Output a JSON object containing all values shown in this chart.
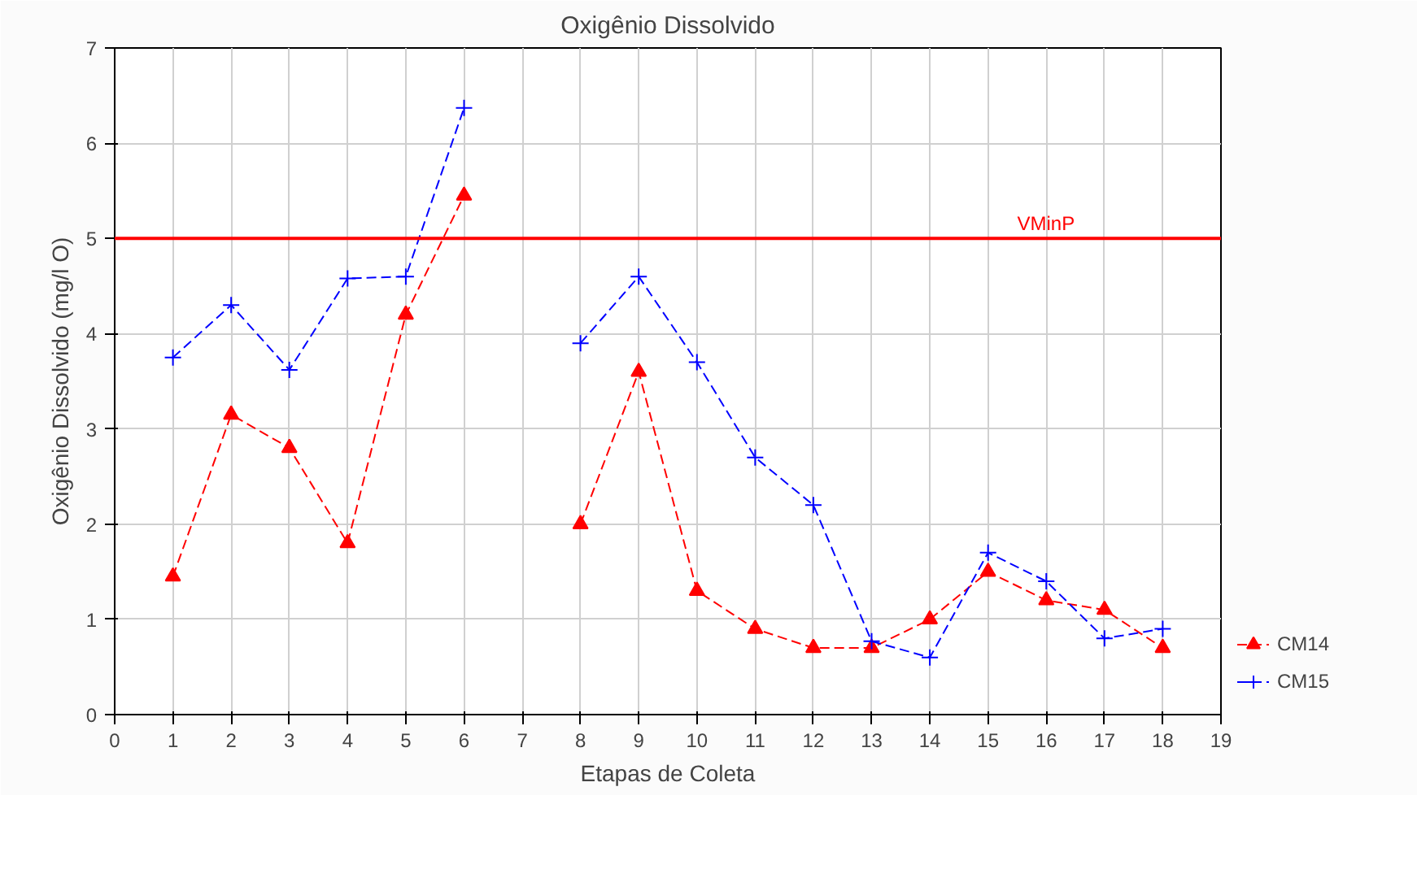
{
  "chart_data": {
    "type": "line",
    "title": "Oxigênio Dissolvido",
    "xlabel": "Etapas de Coleta",
    "ylabel": "Oxigênio Dissolvido (mg/l O)",
    "x": [
      1,
      2,
      3,
      4,
      5,
      6,
      7,
      8,
      9,
      10,
      11,
      12,
      13,
      14,
      15,
      16,
      17,
      18
    ],
    "series": [
      {
        "name": "CM14",
        "color": "#ff0000",
        "marker": "triangle",
        "values": [
          1.45,
          3.15,
          2.8,
          1.8,
          4.2,
          5.45,
          null,
          2.0,
          3.6,
          1.3,
          0.9,
          0.7,
          0.7,
          1.0,
          1.5,
          1.2,
          1.1,
          0.7
        ]
      },
      {
        "name": "CM15",
        "color": "#0000ff",
        "marker": "cross",
        "values": [
          3.75,
          4.3,
          3.62,
          4.58,
          4.6,
          6.37,
          null,
          3.9,
          4.6,
          3.7,
          2.7,
          2.2,
          0.77,
          0.6,
          1.7,
          1.4,
          0.8,
          0.9
        ]
      }
    ],
    "xlim": [
      0,
      19
    ],
    "xticks": [
      0,
      1,
      2,
      3,
      4,
      5,
      6,
      7,
      8,
      9,
      10,
      11,
      12,
      13,
      14,
      15,
      16,
      17,
      18,
      19
    ],
    "ylim": [
      0,
      7
    ],
    "yticks": [
      0,
      1,
      2,
      3,
      4,
      5,
      6,
      7
    ],
    "ref_lines": [
      {
        "axis": "y",
        "value": 5,
        "label": "VMinP",
        "color": "#ff0000"
      }
    ],
    "grid": true,
    "legend": "bottom right",
    "line_style": "dashed"
  }
}
